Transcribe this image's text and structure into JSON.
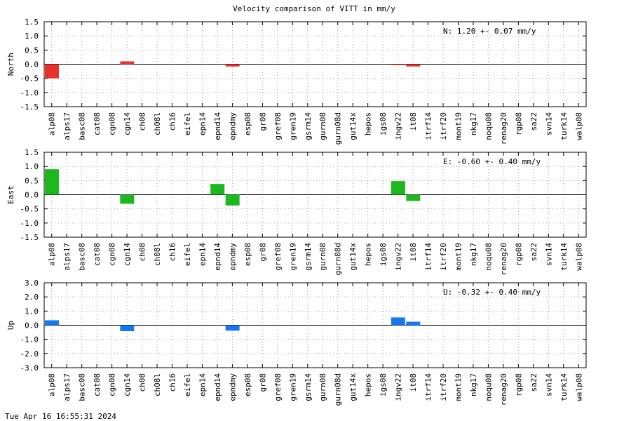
{
  "chart_data": {
    "type": "bar",
    "title": "Velocity comparison of VITT in mm/y",
    "footer": "Tue Apr 16 16:55:31 2024",
    "categories": [
      "alp08",
      "alps17",
      "basc08",
      "cat08",
      "cgn08",
      "cgn14",
      "ch08",
      "ch08l",
      "ch16",
      "eifel",
      "epn14",
      "epnd14",
      "epndmy",
      "esp08",
      "gr08",
      "gref08",
      "gren19",
      "gsrm14",
      "gurn08",
      "gurn08d",
      "gut14x",
      "hepos",
      "igs08",
      "ingv22",
      "it08",
      "itrf14",
      "itrf20",
      "mont19",
      "nkg17",
      "noqu08",
      "renag20",
      "rgp08",
      "sa22",
      "svn14",
      "turk14",
      "walp08"
    ],
    "panels": [
      {
        "ylabel": "North",
        "ylim": [
          -1.5,
          1.5
        ],
        "yticks": [
          "1.5",
          "1.0",
          "0.5",
          "0.0",
          "-0.5",
          "-1.0",
          "-1.5"
        ],
        "color": "#e8302c",
        "annotation": "N:   1.20 +-  0.07 mm/y",
        "values": [
          -0.5,
          0,
          0,
          0,
          0,
          0.1,
          0,
          0,
          0,
          0,
          0,
          0,
          -0.08,
          0,
          0,
          0,
          0,
          0,
          0,
          0,
          0,
          0,
          0,
          -0.03,
          -0.08,
          0,
          0,
          0,
          0,
          0,
          0,
          0,
          0,
          0,
          0,
          0
        ]
      },
      {
        "ylabel": "East",
        "ylim": [
          -1.5,
          1.5
        ],
        "yticks": [
          "1.5",
          "1.0",
          "0.5",
          "0.0",
          "-0.5",
          "-1.0",
          "-1.5"
        ],
        "color": "#1db81d",
        "annotation": "E:  -0.60 +-  0.40 mm/y",
        "values": [
          0.9,
          0,
          0,
          0,
          0,
          -0.32,
          0,
          0,
          0,
          0,
          0,
          0.38,
          -0.38,
          0,
          0,
          0,
          0,
          0,
          0,
          0,
          0,
          0,
          0,
          0.48,
          -0.22,
          0,
          0,
          0,
          0,
          0,
          0,
          0,
          0,
          0,
          0,
          0
        ]
      },
      {
        "ylabel": "Up",
        "ylim": [
          -3.0,
          3.0
        ],
        "yticks": [
          "3.0",
          "2.0",
          "1.0",
          "0.0",
          "-1.0",
          "-2.0",
          "-3.0"
        ],
        "color": "#1478f0",
        "annotation": "U:  -0.32 +-  0.40 mm/y",
        "values": [
          0.35,
          0,
          0,
          0,
          0,
          -0.42,
          0,
          0,
          0,
          0,
          0,
          0,
          -0.38,
          0,
          0,
          0,
          0,
          0,
          0,
          0,
          0,
          0,
          0,
          0.55,
          0.25,
          0,
          0,
          0,
          0,
          0,
          0,
          0,
          0,
          0,
          0,
          0
        ]
      }
    ],
    "grid": true,
    "legend": "none"
  }
}
